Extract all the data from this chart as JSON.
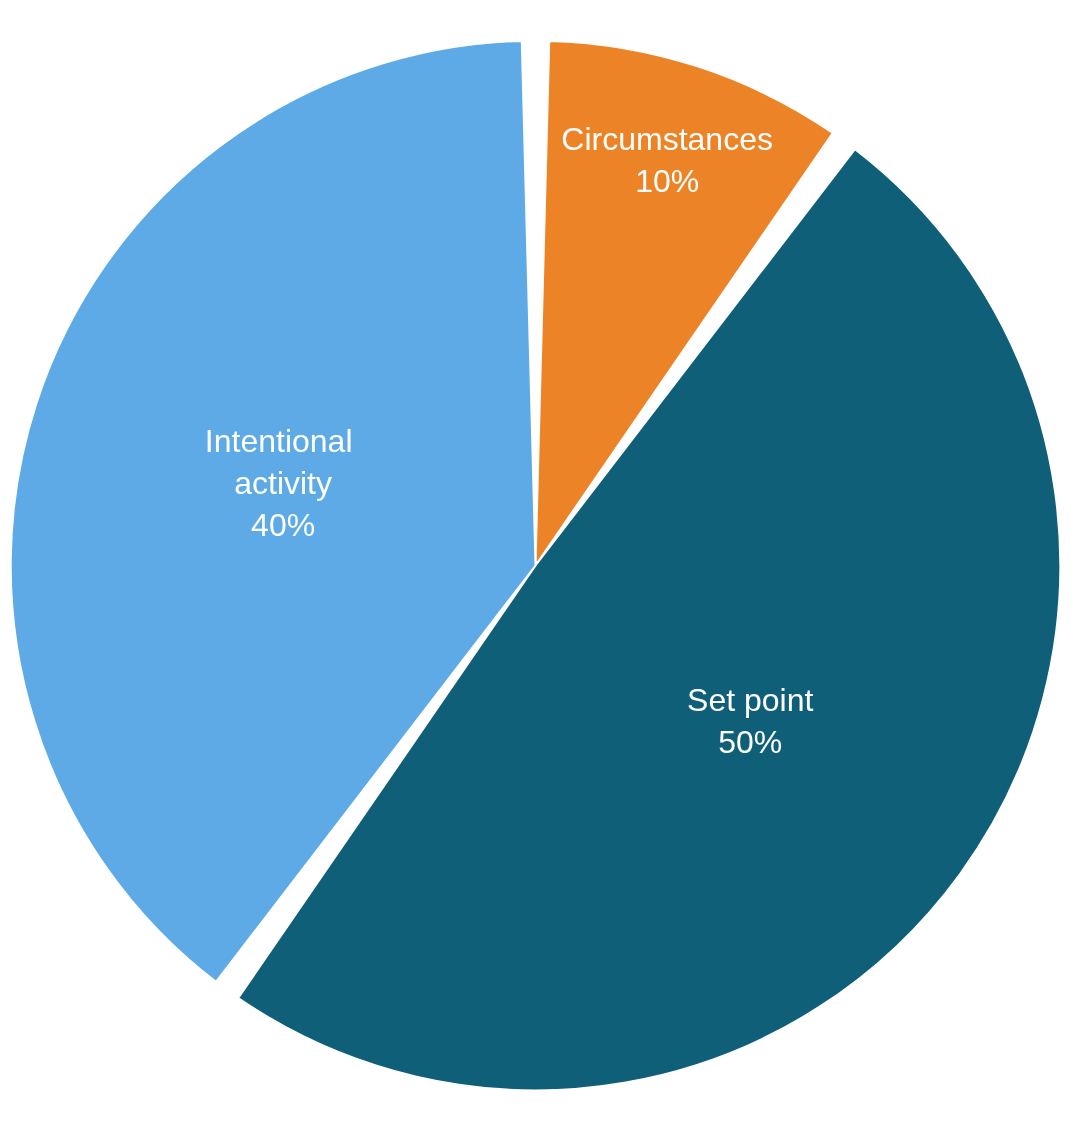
{
  "chart_data": {
    "type": "pie",
    "categories": [
      "Circumstances",
      "Set point",
      "Intentional activity"
    ],
    "values": [
      10,
      50,
      40
    ],
    "colors": [
      "#ec8427",
      "#0f5f79",
      "#5daae6"
    ],
    "value_labels": [
      "10%",
      "50%",
      "40%"
    ],
    "legend": false
  }
}
